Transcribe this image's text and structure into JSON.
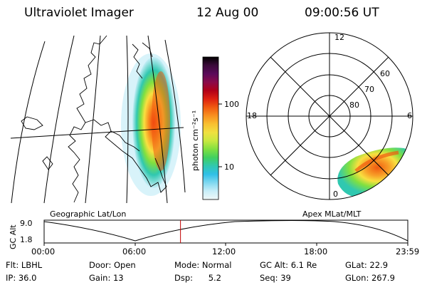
{
  "header": {
    "instrument": "Ultraviolet Imager",
    "date": "12 Aug 00",
    "time": "09:00:56 UT"
  },
  "colorbar": {
    "label": "photon cm⁻²s⁻¹",
    "ticks": [
      "100",
      "10"
    ],
    "colors": [
      "#000000",
      "#3b0a3a",
      "#5a0a5a",
      "#8a0a4a",
      "#b00018",
      "#dd2010",
      "#f05a10",
      "#f89020",
      "#f8c030",
      "#f0e040",
      "#c8e840",
      "#80e040",
      "#40d060",
      "#30c8b0",
      "#30c0e8",
      "#80d8f0",
      "#c8eef8",
      "#f0f8f8"
    ]
  },
  "map_labels": {
    "left_title": "Geographic Lat/Lon",
    "right_title": "Apex MLat/MLT"
  },
  "polar": {
    "mlt_labels": [
      "12",
      "18",
      "6",
      "0"
    ],
    "lat_labels": [
      "60",
      "70",
      "80"
    ]
  },
  "timeline": {
    "axis_label": "GC Alt",
    "y_ticks": [
      "9.0",
      "1.8"
    ],
    "x_ticks": [
      "00:00",
      "06:00",
      "12:00",
      "18:00",
      "23:59"
    ],
    "current_time_fraction": 0.375
  },
  "footer": {
    "rows": [
      [
        {
          "key": "Flt:",
          "value": "LBHL"
        },
        {
          "key": "Door:",
          "value": "Open"
        },
        {
          "key": "Mode:",
          "value": "Normal"
        },
        {
          "key": "GC Alt:",
          "value": "6.1 Re"
        },
        {
          "key": "GLat:",
          "value": "22.9"
        }
      ],
      [
        {
          "key": "IP:",
          "value": "36.0"
        },
        {
          "key": "Gain:",
          "value": "13"
        },
        {
          "key": "Dsp:",
          "value": "5.2"
        },
        {
          "key": "Seq:",
          "value": "39"
        },
        {
          "key": "GLon:",
          "value": "267.9"
        }
      ]
    ]
  }
}
